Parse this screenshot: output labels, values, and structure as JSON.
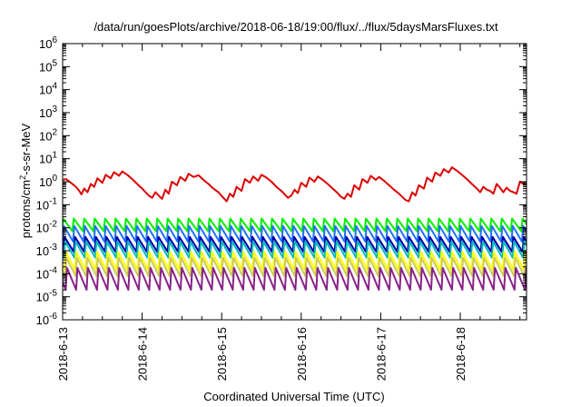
{
  "chart_data": {
    "type": "line",
    "title": "/data/run/goesPlots/archive/2018-06-18/19:00/flux/../flux/5daysMarsFluxes.txt",
    "xlabel": "Coordinated Universal Time (UTC)",
    "ylabel_parts": {
      "base": "protons/cm",
      "sup": "2",
      "rest": "-s-sr-MeV"
    },
    "yscale": "log",
    "ylim": [
      1e-06,
      1000000.0
    ],
    "xlim": [
      "2018-06-13",
      "2018-06-18T20:00"
    ],
    "x_ticks": [
      "2018-6-13",
      "2018-6-14",
      "2018-6-15",
      "2018-6-16",
      "2018-6-17",
      "2018-6-18"
    ],
    "y_ticks": [
      {
        "base": "10",
        "exp": "-6"
      },
      {
        "base": "10",
        "exp": "-5"
      },
      {
        "base": "10",
        "exp": "-4"
      },
      {
        "base": "10",
        "exp": "-3"
      },
      {
        "base": "10",
        "exp": "-2"
      },
      {
        "base": "10",
        "exp": "-1"
      },
      {
        "base": "10",
        "exp": "0"
      },
      {
        "base": "10",
        "exp": "1"
      },
      {
        "base": "10",
        "exp": "2"
      },
      {
        "base": "10",
        "exp": "3"
      },
      {
        "base": "10",
        "exp": "4"
      },
      {
        "base": "10",
        "exp": "5"
      },
      {
        "base": "10",
        "exp": "6"
      }
    ],
    "grid": false,
    "series": [
      {
        "color": "#dd0000",
        "values": [
          {
            "t": "2018-06-13T00:00",
            "y": 1.2
          },
          {
            "t": "2018-06-13T01:00",
            "y": 1.3
          },
          {
            "t": "2018-06-13T02:30",
            "y": 0.9
          },
          {
            "t": "2018-06-13T04:00",
            "y": 0.6
          },
          {
            "t": "2018-06-13T05:00",
            "y": 0.4
          },
          {
            "t": "2018-06-13T05:40",
            "y": 0.28
          },
          {
            "t": "2018-06-13T06:30",
            "y": 0.5
          },
          {
            "t": "2018-06-13T07:30",
            "y": 0.35
          },
          {
            "t": "2018-06-13T08:30",
            "y": 0.8
          },
          {
            "t": "2018-06-13T09:30",
            "y": 0.6
          },
          {
            "t": "2018-06-13T10:30",
            "y": 1.4
          },
          {
            "t": "2018-06-13T12:00",
            "y": 0.9
          },
          {
            "t": "2018-06-13T13:00",
            "y": 2.0
          },
          {
            "t": "2018-06-13T14:30",
            "y": 1.4
          },
          {
            "t": "2018-06-13T15:30",
            "y": 2.6
          },
          {
            "t": "2018-06-13T17:00",
            "y": 1.8
          },
          {
            "t": "2018-06-13T18:00",
            "y": 2.8
          },
          {
            "t": "2018-06-13T19:30",
            "y": 2.0
          },
          {
            "t": "2018-06-13T21:00",
            "y": 1.3
          },
          {
            "t": "2018-06-13T22:30",
            "y": 0.8
          },
          {
            "t": "2018-06-14T00:00",
            "y": 0.5
          },
          {
            "t": "2018-06-14T01:00",
            "y": 0.35
          },
          {
            "t": "2018-06-14T02:00",
            "y": 0.25
          },
          {
            "t": "2018-06-14T03:00",
            "y": 0.2
          },
          {
            "t": "2018-06-14T04:00",
            "y": 0.35
          },
          {
            "t": "2018-06-14T05:00",
            "y": 0.25
          },
          {
            "t": "2018-06-14T06:00",
            "y": 0.18
          },
          {
            "t": "2018-06-14T07:00",
            "y": 0.45
          },
          {
            "t": "2018-06-14T08:00",
            "y": 0.3
          },
          {
            "t": "2018-06-14T09:00",
            "y": 1.0
          },
          {
            "t": "2018-06-14T10:30",
            "y": 0.7
          },
          {
            "t": "2018-06-14T11:30",
            "y": 1.6
          },
          {
            "t": "2018-06-14T13:00",
            "y": 1.1
          },
          {
            "t": "2018-06-14T14:00",
            "y": 2.2
          },
          {
            "t": "2018-06-14T15:30",
            "y": 1.6
          },
          {
            "t": "2018-06-14T17:00",
            "y": 1.9
          },
          {
            "t": "2018-06-14T18:30",
            "y": 1.2
          },
          {
            "t": "2018-06-14T20:00",
            "y": 0.8
          },
          {
            "t": "2018-06-14T21:30",
            "y": 0.5
          },
          {
            "t": "2018-06-14T23:00",
            "y": 0.35
          },
          {
            "t": "2018-06-15T00:30",
            "y": 0.2
          },
          {
            "t": "2018-06-15T01:30",
            "y": 0.14
          },
          {
            "t": "2018-06-15T02:30",
            "y": 0.3
          },
          {
            "t": "2018-06-15T03:30",
            "y": 0.22
          },
          {
            "t": "2018-06-15T04:30",
            "y": 0.6
          },
          {
            "t": "2018-06-15T06:00",
            "y": 0.4
          },
          {
            "t": "2018-06-15T07:00",
            "y": 1.3
          },
          {
            "t": "2018-06-15T08:30",
            "y": 0.9
          },
          {
            "t": "2018-06-15T09:30",
            "y": 1.7
          },
          {
            "t": "2018-06-15T11:00",
            "y": 1.1
          },
          {
            "t": "2018-06-15T12:00",
            "y": 2.0
          },
          {
            "t": "2018-06-15T13:30",
            "y": 1.5
          },
          {
            "t": "2018-06-15T15:00",
            "y": 1.0
          },
          {
            "t": "2018-06-15T16:30",
            "y": 0.6
          },
          {
            "t": "2018-06-15T18:00",
            "y": 0.4
          },
          {
            "t": "2018-06-15T19:00",
            "y": 0.28
          },
          {
            "t": "2018-06-15T20:00",
            "y": 0.2
          },
          {
            "t": "2018-06-15T21:00",
            "y": 0.25
          },
          {
            "t": "2018-06-15T22:00",
            "y": 0.45
          },
          {
            "t": "2018-06-15T23:00",
            "y": 0.32
          },
          {
            "t": "2018-06-16T00:00",
            "y": 0.9
          },
          {
            "t": "2018-06-16T01:30",
            "y": 0.6
          },
          {
            "t": "2018-06-16T02:30",
            "y": 1.5
          },
          {
            "t": "2018-06-16T04:00",
            "y": 1.0
          },
          {
            "t": "2018-06-16T05:00",
            "y": 1.7
          },
          {
            "t": "2018-06-16T06:30",
            "y": 1.2
          },
          {
            "t": "2018-06-16T08:00",
            "y": 0.8
          },
          {
            "t": "2018-06-16T09:30",
            "y": 0.5
          },
          {
            "t": "2018-06-16T11:00",
            "y": 0.32
          },
          {
            "t": "2018-06-16T12:00",
            "y": 0.22
          },
          {
            "t": "2018-06-16T13:00",
            "y": 0.18
          },
          {
            "t": "2018-06-16T14:00",
            "y": 0.3
          },
          {
            "t": "2018-06-16T15:00",
            "y": 0.22
          },
          {
            "t": "2018-06-16T16:00",
            "y": 0.7
          },
          {
            "t": "2018-06-16T17:30",
            "y": 0.45
          },
          {
            "t": "2018-06-16T18:30",
            "y": 1.3
          },
          {
            "t": "2018-06-16T20:00",
            "y": 0.9
          },
          {
            "t": "2018-06-16T21:00",
            "y": 1.8
          },
          {
            "t": "2018-06-16T22:30",
            "y": 1.2
          },
          {
            "t": "2018-06-16T23:30",
            "y": 1.6
          },
          {
            "t": "2018-06-17T01:00",
            "y": 1.1
          },
          {
            "t": "2018-06-17T02:30",
            "y": 0.7
          },
          {
            "t": "2018-06-17T04:00",
            "y": 0.45
          },
          {
            "t": "2018-06-17T05:30",
            "y": 0.3
          },
          {
            "t": "2018-06-17T06:30",
            "y": 0.22
          },
          {
            "t": "2018-06-17T07:30",
            "y": 0.16
          },
          {
            "t": "2018-06-17T08:30",
            "y": 0.14
          },
          {
            "t": "2018-06-17T09:30",
            "y": 0.35
          },
          {
            "t": "2018-06-17T10:30",
            "y": 0.25
          },
          {
            "t": "2018-06-17T11:30",
            "y": 0.7
          },
          {
            "t": "2018-06-17T13:00",
            "y": 0.5
          },
          {
            "t": "2018-06-17T14:00",
            "y": 1.5
          },
          {
            "t": "2018-06-17T15:30",
            "y": 1.0
          },
          {
            "t": "2018-06-17T16:30",
            "y": 2.5
          },
          {
            "t": "2018-06-17T18:00",
            "y": 1.8
          },
          {
            "t": "2018-06-17T19:00",
            "y": 3.5
          },
          {
            "t": "2018-06-17T20:30",
            "y": 2.5
          },
          {
            "t": "2018-06-17T21:30",
            "y": 4.2
          },
          {
            "t": "2018-06-17T23:00",
            "y": 3.0
          },
          {
            "t": "2018-06-18T00:30",
            "y": 2.0
          },
          {
            "t": "2018-06-18T02:00",
            "y": 1.3
          },
          {
            "t": "2018-06-18T03:30",
            "y": 0.8
          },
          {
            "t": "2018-06-18T05:00",
            "y": 0.5
          },
          {
            "t": "2018-06-18T06:00",
            "y": 0.35
          },
          {
            "t": "2018-06-18T07:00",
            "y": 0.6
          },
          {
            "t": "2018-06-18T08:00",
            "y": 0.45
          },
          {
            "t": "2018-06-18T09:00",
            "y": 0.4
          },
          {
            "t": "2018-06-18T10:00",
            "y": 0.3
          },
          {
            "t": "2018-06-18T11:00",
            "y": 0.8
          },
          {
            "t": "2018-06-18T12:00",
            "y": 0.55
          },
          {
            "t": "2018-06-18T13:00",
            "y": 0.35
          },
          {
            "t": "2018-06-18T14:00",
            "y": 0.55
          },
          {
            "t": "2018-06-18T15:00",
            "y": 0.4
          },
          {
            "t": "2018-06-18T16:00",
            "y": 0.35
          },
          {
            "t": "2018-06-18T17:00",
            "y": 0.3
          },
          {
            "t": "2018-06-18T18:00",
            "y": 1.0
          },
          {
            "t": "2018-06-18T19:00",
            "y": 0.8
          },
          {
            "t": "2018-06-18T20:00",
            "y": 0.75
          }
        ]
      },
      {
        "color": "#00ee00",
        "sawtooth": {
          "period_h": 3.15,
          "peak": 0.025,
          "trough": 0.007
        }
      },
      {
        "color": "#1e70ff",
        "sawtooth": {
          "period_h": 3.15,
          "peak": 0.012,
          "trough": 0.0025
        }
      },
      {
        "color": "#0000aa",
        "sawtooth": {
          "period_h": 3.15,
          "peak": 0.004,
          "trough": 0.0009
        }
      },
      {
        "color": "#00bbbb",
        "sawtooth": {
          "period_h": 3.15,
          "peak": 0.0025,
          "trough": 0.0005
        }
      },
      {
        "color": "#ffff00",
        "sawtooth": {
          "period_h": 3.15,
          "peak": 0.0009,
          "trough": 0.00015
        }
      },
      {
        "color": "#cccc55",
        "sawtooth": {
          "period_h": 3.15,
          "peak": 0.0005,
          "trough": 8e-05
        }
      },
      {
        "color": "#882288",
        "sawtooth": {
          "period_h": 3.15,
          "peak": 0.00018,
          "trough": 2e-05
        }
      }
    ]
  }
}
